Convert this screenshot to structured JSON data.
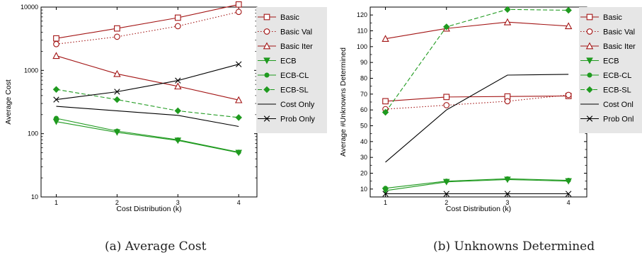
{
  "captions": [
    "(a) Average Cost",
    "(b) Unknowns Determined"
  ],
  "legend_items": [
    {
      "label": "Basic",
      "color": "#a31515",
      "marker": "square-open",
      "dash": "solid"
    },
    {
      "label": "Basic Val",
      "color": "#a31515",
      "marker": "circle-open",
      "dash": "dotted"
    },
    {
      "label": "Basic Iter",
      "color": "#a31515",
      "marker": "triangle-up-open",
      "dash": "solid"
    },
    {
      "label": "ECB",
      "color": "#1f9a1f",
      "marker": "triangle-down-filled",
      "dash": "solid"
    },
    {
      "label": "ECB-CL",
      "color": "#1f9a1f",
      "marker": "circle-filled",
      "dash": "solid"
    },
    {
      "label": "ECB-SL",
      "color": "#1f9a1f",
      "marker": "diamond-filled",
      "dash": "dashed"
    },
    {
      "label": "Cost Only",
      "color": "#000000",
      "marker": "none",
      "dash": "solid"
    },
    {
      "label": "Prob Only",
      "color": "#000000",
      "marker": "x",
      "dash": "solid"
    }
  ],
  "legend_b_visible_labels": [
    "Basic",
    "Basic Val",
    "Basic Iter",
    "ECB",
    "ECB-CL",
    "ECB-SL",
    "Cost Onl",
    "Prob Onl"
  ],
  "chart_data": [
    {
      "type": "line",
      "title": "",
      "xlabel": "Cost Distribution (k)",
      "ylabel": "Average Cost",
      "yscale": "log",
      "ylim": [
        10,
        10000
      ],
      "xlim": [
        0.75,
        4.3
      ],
      "x": [
        1,
        2,
        3,
        4
      ],
      "xticks": [
        "1",
        "2",
        "3",
        "4"
      ],
      "yticks": [
        10,
        100,
        1000,
        10000
      ],
      "ytick_labels": [
        "10",
        "100",
        "1000",
        "10000"
      ],
      "legend_position": "right",
      "series": [
        {
          "name": "Basic",
          "values": [
            3200,
            4600,
            6800,
            11000
          ]
        },
        {
          "name": "Basic Val",
          "values": [
            2600,
            3400,
            5000,
            8400
          ]
        },
        {
          "name": "Basic Iter",
          "values": [
            1700,
            880,
            560,
            340
          ]
        },
        {
          "name": "ECB",
          "values": [
            155,
            105,
            78,
            50
          ]
        },
        {
          "name": "ECB-CL",
          "values": [
            175,
            110,
            80,
            51
          ]
        },
        {
          "name": "ECB-SL",
          "values": [
            500,
            345,
            230,
            180
          ]
        },
        {
          "name": "Cost Only",
          "values": [
            270,
            230,
            195,
            130
          ]
        },
        {
          "name": "Prob Only",
          "values": [
            345,
            460,
            690,
            1250
          ]
        }
      ]
    },
    {
      "type": "line",
      "title": "",
      "xlabel": "Cost Distribution (k)",
      "ylabel": "Average #Unknowns Determined",
      "yscale": "linear",
      "ylim": [
        5,
        125
      ],
      "xlim": [
        0.75,
        4.3
      ],
      "x": [
        1,
        2,
        3,
        4
      ],
      "xticks": [
        "1",
        "2",
        "3",
        "4"
      ],
      "yticks": [
        10,
        20,
        30,
        40,
        50,
        60,
        70,
        80,
        90,
        100,
        110,
        120
      ],
      "ytick_labels": [
        "10",
        "20",
        "30",
        "40",
        "50",
        "60",
        "70",
        "80",
        "90",
        "100",
        "110",
        "120"
      ],
      "legend_position": "right",
      "series": [
        {
          "name": "Basic",
          "values": [
            65.5,
            68.2,
            68.5,
            68.8
          ]
        },
        {
          "name": "Basic Val",
          "values": [
            60.5,
            63,
            65.5,
            69.5
          ]
        },
        {
          "name": "Basic Iter",
          "values": [
            105,
            111.5,
            115.5,
            113
          ]
        },
        {
          "name": "ECB",
          "values": [
            9,
            14.5,
            16,
            15
          ]
        },
        {
          "name": "ECB-CL",
          "values": [
            10.5,
            15,
            16.5,
            15.5
          ]
        },
        {
          "name": "ECB-SL",
          "values": [
            58.5,
            112.5,
            123.5,
            123
          ]
        },
        {
          "name": "Cost Only",
          "values": [
            27,
            60,
            82,
            82.5
          ]
        },
        {
          "name": "Prob Only",
          "values": [
            7,
            7,
            7,
            7
          ]
        }
      ]
    }
  ]
}
